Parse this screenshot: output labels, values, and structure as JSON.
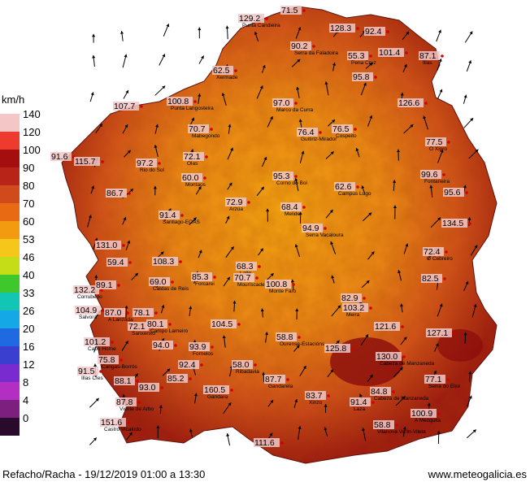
{
  "legend": {
    "title": "km/h",
    "levels": [
      {
        "label": "140",
        "color": "#f4c6c6"
      },
      {
        "label": "120",
        "color": "#ee3b30"
      },
      {
        "label": "100",
        "color": "#a50e0e"
      },
      {
        "label": "90",
        "color": "#b92418"
      },
      {
        "label": "80",
        "color": "#d14a1c"
      },
      {
        "label": "70",
        "color": "#e86a13"
      },
      {
        "label": "60",
        "color": "#f29a10"
      },
      {
        "label": "53",
        "color": "#f7c61b"
      },
      {
        "label": "46",
        "color": "#c5dd17"
      },
      {
        "label": "40",
        "color": "#3ec82c"
      },
      {
        "label": "33",
        "color": "#13c6b3"
      },
      {
        "label": "26",
        "color": "#14a9e6"
      },
      {
        "label": "20",
        "color": "#1f6ae0"
      },
      {
        "label": "16",
        "color": "#3a3fd0"
      },
      {
        "label": "12",
        "color": "#7a2bd0"
      },
      {
        "label": "8",
        "color": "#b32fc4"
      },
      {
        "label": "4",
        "color": "#7d1f7e"
      },
      {
        "label": "0",
        "color": "#2a0a2a"
      }
    ]
  },
  "stations": [
    {
      "value": "129.2",
      "name": "Punta Candieira"
    },
    {
      "value": "71.5",
      "name": ""
    },
    {
      "value": "128.3",
      "name": ""
    },
    {
      "value": "92.4",
      "name": ""
    },
    {
      "value": "90.2",
      "name": "Serra da Faladoira"
    },
    {
      "value": "55.3",
      "name": "Pena Cruz"
    },
    {
      "value": "101.4",
      "name": ""
    },
    {
      "value": "87.1",
      "name": "Illas"
    },
    {
      "value": "62.5",
      "name": "Xermade"
    },
    {
      "value": "95.8",
      "name": ""
    },
    {
      "value": "107.7",
      "name": ""
    },
    {
      "value": "100.8",
      "name": "Punta Langosteira"
    },
    {
      "value": "97.0",
      "name": "Marco da Curra"
    },
    {
      "value": "126.6",
      "name": ""
    },
    {
      "value": "70.7",
      "name": "Mabegondo"
    },
    {
      "value": "76.4",
      "name": "Guitiriz-Mirador"
    },
    {
      "value": "76.5",
      "name": "Cospeito"
    },
    {
      "value": "77.5",
      "name": "O Xipro"
    },
    {
      "value": "91.6",
      "name": ""
    },
    {
      "value": "115.7",
      "name": ""
    },
    {
      "value": "97.2",
      "name": "Rio do Sol"
    },
    {
      "value": "72.1",
      "name": "Olas"
    },
    {
      "value": "60.0",
      "name": "Montaos"
    },
    {
      "value": "95.3",
      "name": "Corno do Boi"
    },
    {
      "value": "62.6",
      "name": "Campus Lugo"
    },
    {
      "value": "99.6",
      "name": "Fontaneira"
    },
    {
      "value": "86.7",
      "name": ""
    },
    {
      "value": "95.6",
      "name": ""
    },
    {
      "value": "72.9",
      "name": "Arzúa"
    },
    {
      "value": "68.4",
      "name": "Melide"
    },
    {
      "value": "91.4",
      "name": "Santiago-EOAS"
    },
    {
      "value": "134.5",
      "name": ""
    },
    {
      "value": "94.9",
      "name": "Serra Vacaloura"
    },
    {
      "value": "131.0",
      "name": ""
    },
    {
      "value": "72.4",
      "name": "O Cebreiro"
    },
    {
      "value": "59.4",
      "name": ""
    },
    {
      "value": "108.3",
      "name": ""
    },
    {
      "value": "68.3",
      "name": "Lalín"
    },
    {
      "value": "82.5",
      "name": ""
    },
    {
      "value": "132.2",
      "name": "Corrubedo"
    },
    {
      "value": "89.1",
      "name": ""
    },
    {
      "value": "69.0",
      "name": "Caldas de Reis"
    },
    {
      "value": "85.3",
      "name": "Forcarei"
    },
    {
      "value": "70.7",
      "name": "Mouriscade"
    },
    {
      "value": "100.8",
      "name": "Monte Faro"
    },
    {
      "value": "82.9",
      "name": ""
    },
    {
      "value": "103.2",
      "name": "Meira"
    },
    {
      "value": "104.9",
      "name": "Salvora"
    },
    {
      "value": "87.0",
      "name": "A Lanzada"
    },
    {
      "value": "78.1",
      "name": ""
    },
    {
      "value": "72.1",
      "name": "Sanxenxo"
    },
    {
      "value": "80.1",
      "name": "Campo Lameiro"
    },
    {
      "value": "104.5",
      "name": ""
    },
    {
      "value": "121.6",
      "name": ""
    },
    {
      "value": "127.1",
      "name": ""
    },
    {
      "value": "101.2",
      "name": "Cabo Home"
    },
    {
      "value": "94.0",
      "name": ""
    },
    {
      "value": "93.9",
      "name": "Fornelos"
    },
    {
      "value": "58.8",
      "name": "Ourense-Estacións"
    },
    {
      "value": "125.8",
      "name": ""
    },
    {
      "value": "130.0",
      "name": "Cabeza de Manzaneda"
    },
    {
      "value": "75.8",
      "name": "Cangas-Borrós"
    },
    {
      "value": "92.4",
      "name": ""
    },
    {
      "value": "58.0",
      "name": "Ribadavia"
    },
    {
      "value": "91.5",
      "name": "Illas Cíes"
    },
    {
      "value": "88.1",
      "name": ""
    },
    {
      "value": "93.0",
      "name": ""
    },
    {
      "value": "85.2",
      "name": ""
    },
    {
      "value": "160.5",
      "name": "Gándara"
    },
    {
      "value": "87.7",
      "name": "Gandarela"
    },
    {
      "value": "77.1",
      "name": "Serra do Eixe"
    },
    {
      "value": "84.8",
      "name": "Cabeza de Manzaneda"
    },
    {
      "value": "87.8",
      "name": "Vicnte de Arbo"
    },
    {
      "value": "83.7",
      "name": "Xinzo"
    },
    {
      "value": "91.4",
      "name": "Laza"
    },
    {
      "value": "100.9",
      "name": "A Mezquita"
    },
    {
      "value": "151.6",
      "name": "Castro Vicaludo"
    },
    {
      "value": "58.8",
      "name": "Vilanova Verín-Vilela"
    },
    {
      "value": "111.6",
      "name": ""
    }
  ],
  "footer": {
    "left": "Refacho/Racha - 19/12/2019 01:00 a 13:30",
    "right": "www.meteogalicia.es"
  }
}
